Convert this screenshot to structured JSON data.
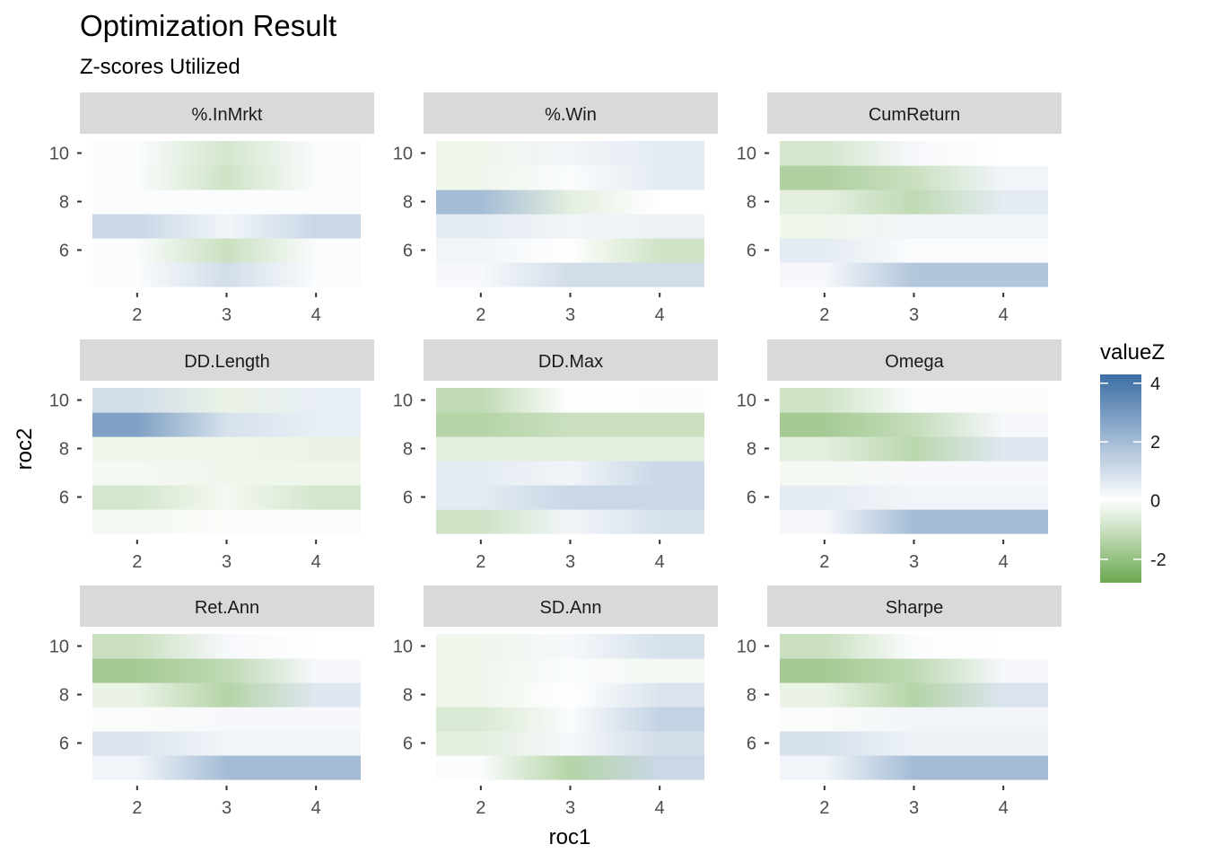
{
  "chart_data": {
    "type": "heatmap",
    "title": "Optimization Result",
    "subtitle": "Z-scores Utilized",
    "xlabel": "roc1",
    "ylabel": "roc2",
    "x_values": [
      2,
      3,
      4
    ],
    "y_values": [
      5,
      6,
      7,
      8,
      9,
      10
    ],
    "x_ticks": [
      "2",
      "3",
      "4"
    ],
    "y_ticks": [
      "6",
      "8",
      "10"
    ],
    "legend": {
      "title": "valueZ",
      "ticks": [
        "4",
        "2",
        "0",
        "-2"
      ],
      "tick_values": [
        4,
        2,
        0,
        -2
      ],
      "range": [
        -2.8,
        4.3
      ],
      "colors": {
        "low": "#6aa84f",
        "mid": "#ffffff",
        "high": "#3c6ea5"
      }
    },
    "facets": [
      {
        "name": "%.InMrkt",
        "z": [
          [
            0.1,
            1.0,
            0.1
          ],
          [
            0.1,
            -1.0,
            0.1
          ],
          [
            1.2,
            0.3,
            1.2
          ],
          [
            0.1,
            0.1,
            0.1
          ],
          [
            0.1,
            -0.9,
            0.1
          ],
          [
            0.1,
            -0.8,
            0.1
          ]
        ]
      },
      {
        "name": "%.Win",
        "z": [
          [
            0.2,
            1.0,
            1.0
          ],
          [
            0.3,
            0.0,
            -0.9
          ],
          [
            0.6,
            0.3,
            0.4
          ],
          [
            2.0,
            -0.5,
            0.0
          ],
          [
            -0.3,
            0.1,
            0.6
          ],
          [
            -0.3,
            0.3,
            0.6
          ]
        ]
      },
      {
        "name": "CumReturn",
        "z": [
          [
            0.2,
            1.7,
            1.7
          ],
          [
            0.6,
            0.1,
            0.1
          ],
          [
            -0.3,
            0.3,
            0.3
          ],
          [
            -0.5,
            -1.2,
            0.6
          ],
          [
            -1.5,
            -1.0,
            0.3
          ],
          [
            -0.8,
            0.2,
            0.0
          ]
        ]
      },
      {
        "name": "DD.Length",
        "z": [
          [
            -0.2,
            -0.1,
            -0.1
          ],
          [
            -0.8,
            -0.2,
            -0.8
          ],
          [
            -0.2,
            -0.3,
            -0.3
          ],
          [
            -0.3,
            -0.3,
            -0.4
          ],
          [
            2.8,
            0.9,
            0.5
          ],
          [
            1.0,
            -0.4,
            0.5
          ]
        ]
      },
      {
        "name": "DD.Max",
        "z": [
          [
            -0.9,
            0.3,
            0.9
          ],
          [
            0.6,
            1.2,
            1.2
          ],
          [
            0.6,
            0.3,
            1.2
          ],
          [
            -0.5,
            -0.5,
            -0.5
          ],
          [
            -1.4,
            -1.0,
            -1.0
          ],
          [
            -1.2,
            0.0,
            0.1
          ]
        ]
      },
      {
        "name": "Omega",
        "z": [
          [
            0.2,
            2.0,
            2.0
          ],
          [
            0.6,
            0.3,
            0.3
          ],
          [
            -0.2,
            0.2,
            0.2
          ],
          [
            -0.5,
            -1.3,
            0.7
          ],
          [
            -1.7,
            -1.1,
            0.2
          ],
          [
            -0.9,
            0.1,
            -0.1
          ]
        ]
      },
      {
        "name": "Ret.Ann",
        "z": [
          [
            0.3,
            2.0,
            2.0
          ],
          [
            0.8,
            0.3,
            0.3
          ],
          [
            -0.1,
            0.2,
            0.2
          ],
          [
            -0.4,
            -1.4,
            0.7
          ],
          [
            -1.7,
            -1.2,
            0.2
          ],
          [
            -1.0,
            0.2,
            0.0
          ]
        ]
      },
      {
        "name": "SD.Ann",
        "z": [
          [
            0.1,
            -1.4,
            1.2
          ],
          [
            -0.5,
            0.2,
            1.0
          ],
          [
            -0.7,
            0.1,
            1.3
          ],
          [
            -0.3,
            0.0,
            0.8
          ],
          [
            -0.3,
            0.1,
            -0.2
          ],
          [
            -0.3,
            0.2,
            0.9
          ]
        ]
      },
      {
        "name": "Sharpe",
        "z": [
          [
            0.3,
            2.0,
            2.0
          ],
          [
            0.9,
            0.4,
            0.4
          ],
          [
            -0.1,
            0.3,
            0.3
          ],
          [
            -0.4,
            -1.4,
            0.8
          ],
          [
            -1.7,
            -1.2,
            0.2
          ],
          [
            -1.0,
            0.1,
            0.0
          ]
        ]
      }
    ]
  }
}
